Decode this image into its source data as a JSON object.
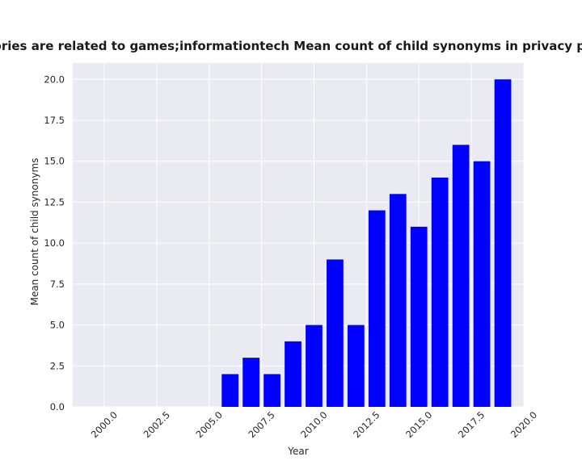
{
  "chart_data": {
    "type": "bar",
    "title": "Categories are related to games;informationtech Mean count of child synonyms in privacy policies",
    "xlabel": "Year",
    "ylabel": "Mean count of child synonyms",
    "x": [
      2006,
      2007,
      2008,
      2009,
      2010,
      2011,
      2012,
      2013,
      2014,
      2015,
      2016,
      2017,
      2018,
      2019
    ],
    "values": [
      2,
      3,
      2,
      4,
      5,
      9,
      5,
      12,
      13,
      11,
      14,
      16,
      15,
      20
    ],
    "xlim": [
      1998.5,
      2020.0
    ],
    "ylim": [
      0,
      21
    ],
    "xticks": [
      2000.0,
      2002.5,
      2005.0,
      2007.5,
      2010.0,
      2012.5,
      2015.0,
      2017.5,
      2020.0
    ],
    "xtick_labels": [
      "2000.0",
      "2002.5",
      "2005.0",
      "2007.5",
      "2010.0",
      "2012.5",
      "2015.0",
      "2017.5",
      "2020.0"
    ],
    "yticks": [
      0,
      2.5,
      5,
      7.5,
      10,
      12.5,
      15,
      17.5,
      20
    ],
    "ytick_labels": [
      "0.0",
      "2.5",
      "5.0",
      "7.5",
      "10.0",
      "12.5",
      "15.0",
      "17.5",
      "20.0"
    ],
    "grid": true,
    "colors": {
      "bar": "#0000ff",
      "plot_background": "#eaeaf2",
      "grid": "#ffffff"
    }
  }
}
